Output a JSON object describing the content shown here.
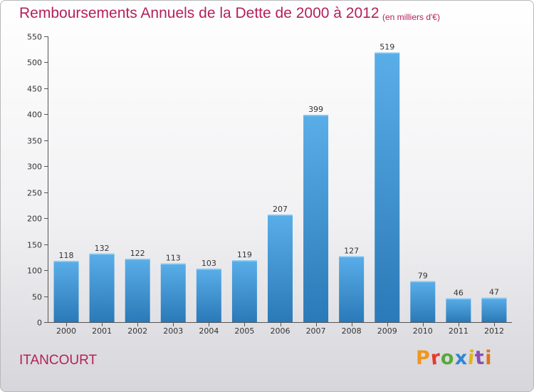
{
  "header": {
    "title": "Remboursements Annuels de la Dette de 2000 à 2012",
    "unit": "(en milliers d'€)"
  },
  "footer": {
    "commune": "ITANCOURT",
    "logo_text": "Proxiti"
  },
  "colors": {
    "title": "#b4205a",
    "bar_top": "#5aaee8",
    "bar_bottom": "#2a79b8",
    "logo_letters": [
      "#f0961e",
      "#e53b2a",
      "#58a83a",
      "#2e87d1",
      "#e0b420",
      "#8b4fb0",
      "#e07020"
    ]
  },
  "chart_data": {
    "type": "bar",
    "categories": [
      "2000",
      "2001",
      "2002",
      "2003",
      "2004",
      "2005",
      "2006",
      "2007",
      "2008",
      "2009",
      "2010",
      "2011",
      "2012"
    ],
    "values": [
      118,
      132,
      122,
      113,
      103,
      119,
      207,
      399,
      127,
      519,
      79,
      46,
      47
    ],
    "ylim": [
      0,
      550
    ],
    "yticks": [
      0,
      50,
      100,
      150,
      200,
      250,
      300,
      350,
      400,
      450,
      500,
      550
    ],
    "grid": false,
    "title": "Remboursements Annuels de la Dette de 2000 à 2012",
    "xlabel": "",
    "ylabel": "(en milliers d'€)"
  }
}
